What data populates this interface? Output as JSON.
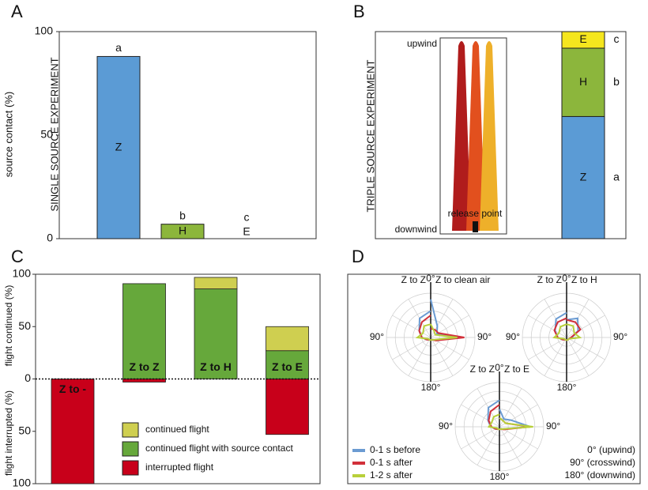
{
  "chart_data": [
    {
      "type": "bar",
      "panel": "A",
      "ylabel": "source contact (%)",
      "side_label": "SINGLE SOURCE EXPERIMENT",
      "categories": [
        "Z",
        "H",
        "E"
      ],
      "values": [
        88,
        7,
        0
      ],
      "letters": [
        "a",
        "b",
        "c"
      ],
      "colors": [
        "#5b9bd5",
        "#8cb63c",
        "#f5e61e"
      ],
      "ylim": [
        0,
        100
      ],
      "yticks": [
        0,
        50,
        100
      ]
    },
    {
      "type": "stacked_bar",
      "panel": "B",
      "side_label": "TRIPLE SOURCE EXPERIMENT",
      "diagram_labels": {
        "top": "upwind",
        "bottom": "downwind",
        "release": "release point"
      },
      "categories": [
        "Z",
        "H",
        "E"
      ],
      "values": [
        59,
        33,
        8
      ],
      "letters": [
        "a",
        "b",
        "c"
      ],
      "colors": [
        "#5b9bd5",
        "#8cb63c",
        "#f5e61e"
      ],
      "ylim": [
        0,
        100
      ]
    },
    {
      "type": "diverging_bar",
      "panel": "C",
      "ylabel_top": "flight continued (%)",
      "ylabel_bottom": "flight interrupted (%)",
      "categories": [
        "Z to -",
        "Z to Z",
        "Z to H",
        "Z to E"
      ],
      "series": [
        {
          "name": "continued flight",
          "color": "#cfcf50",
          "values": [
            0,
            0,
            11,
            23
          ]
        },
        {
          "name": "continued flight with source contact",
          "color": "#66a83b",
          "values": [
            0,
            91,
            86,
            27
          ]
        },
        {
          "name": "interrupted flight",
          "color": "#c8001a",
          "values": [
            -100,
            -3,
            0,
            -53
          ]
        }
      ],
      "ylim": [
        -100,
        100
      ],
      "yticks": [
        {
          "value": -100,
          "label": "100"
        },
        {
          "value": -50,
          "label": "50"
        },
        0,
        50,
        100
      ]
    },
    {
      "type": "polar",
      "panel": "D",
      "angles": [
        0,
        30,
        60,
        90,
        120,
        150,
        180
      ],
      "rlim": [
        0,
        5
      ],
      "angle_labels": [
        "0°",
        "90°",
        "180°"
      ],
      "series": [
        {
          "name": "0-1 s before",
          "color": "#6b9bd2"
        },
        {
          "name": "0-1 s after",
          "color": "#d2303a"
        },
        {
          "name": "1-2 s after",
          "color": "#b8d03a"
        }
      ],
      "plots": [
        {
          "labels": [
            "Z to Z",
            "Z to clean air"
          ],
          "left": [
            [
              3,
              2.5,
              1.5,
              1,
              0.5,
              0.3,
              0.3
            ],
            [
              2.5,
              2,
              1.5,
              1,
              0.5,
              0.3,
              0.3
            ],
            [
              1.5,
              1.5,
              1,
              1.5,
              0.3,
              0.3,
              0.3
            ]
          ],
          "right": [
            [
              4.3,
              1.5,
              0.8,
              3.5,
              0.6,
              0.3,
              0.3
            ],
            [
              1,
              1,
              1,
              3.8,
              0.7,
              0.3,
              0.3
            ],
            [
              1.5,
              0.8,
              0.6,
              3,
              0.5,
              0.3,
              0.3
            ]
          ]
        },
        {
          "labels": [
            "Z to Z",
            "Z to H"
          ],
          "left": [
            [
              2.8,
              2.4,
              1.5,
              1,
              0.5,
              0.3,
              0.3
            ],
            [
              2.2,
              2,
              1.6,
              1,
              0.5,
              0.3,
              0.3
            ],
            [
              1.5,
              1.4,
              1,
              1.4,
              0.3,
              0.3,
              0.3
            ]
          ],
          "right": [
            [
              2,
              2.5,
              1.5,
              0.6,
              0.3,
              0.3,
              0.3
            ],
            [
              2,
              2,
              1.8,
              0.5,
              0.3,
              0.3,
              0.3
            ],
            [
              1.5,
              1.5,
              1,
              1.5,
              0.3,
              0.3,
              0.3
            ]
          ]
        },
        {
          "labels": [
            "Z to Z",
            "Z to E"
          ],
          "left": [
            [
              3,
              2.5,
              1.5,
              1,
              0.5,
              0.3,
              0.3
            ],
            [
              2.5,
              2,
              1.4,
              0.9,
              0.5,
              0.3,
              0.3
            ],
            [
              1.4,
              1.3,
              1,
              1.2,
              0.3,
              0.3,
              0.3
            ]
          ],
          "right": [
            [
              2,
              1,
              1.5,
              3.5,
              0.5,
              0.3,
              0.3
            ],
            [
              1,
              0.8,
              0.8,
              3.5,
              0.6,
              0.3,
              0.3
            ],
            [
              1,
              0.8,
              0.8,
              3.8,
              0.5,
              0.3,
              0.3
            ]
          ]
        }
      ],
      "notes": [
        "0° (upwind)",
        "90° (crosswind)",
        "180° (downwind)"
      ]
    }
  ]
}
